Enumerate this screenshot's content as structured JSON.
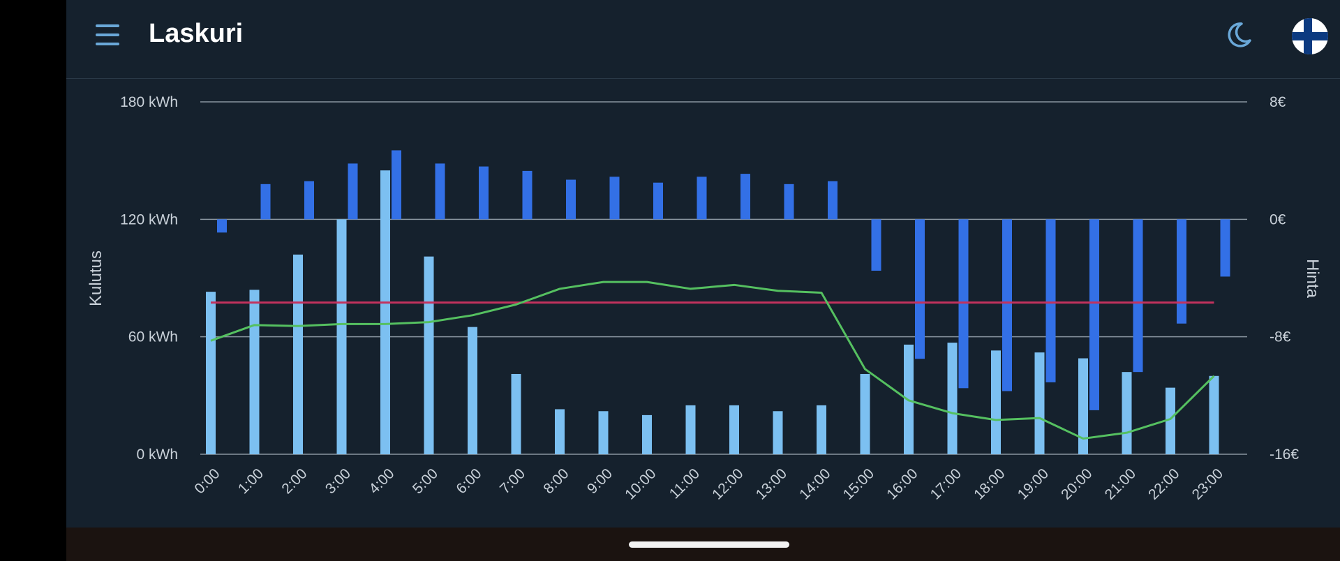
{
  "app": {
    "title": "Laskuri"
  },
  "icons": {
    "menu": "menu-icon",
    "theme": "moon-icon",
    "language": "finland-flag-icon"
  },
  "colors": {
    "background": "#15212d",
    "consumption_bar": "#7cc0f1",
    "price_bar": "#3370e6",
    "green_line": "#55c060",
    "red_line": "#c3325e",
    "grid": "#8a96a0"
  },
  "chart_data": {
    "type": "bar",
    "categories": [
      "0:00",
      "1:00",
      "2:00",
      "3:00",
      "4:00",
      "5:00",
      "6:00",
      "7:00",
      "8:00",
      "9:00",
      "10:00",
      "11:00",
      "12:00",
      "13:00",
      "14:00",
      "15:00",
      "16:00",
      "17:00",
      "18:00",
      "19:00",
      "20:00",
      "21:00",
      "22:00",
      "23:00"
    ],
    "left_axis": {
      "label": "Kulutus",
      "range": [
        0,
        180
      ],
      "ticks": [
        0,
        60,
        120,
        180
      ],
      "tick_labels": [
        "0 kWh",
        "60 kWh",
        "120 kWh",
        "180 kWh"
      ]
    },
    "right_axis": {
      "label": "Hinta",
      "range": [
        -16,
        8
      ],
      "ticks": [
        -16,
        -8,
        0,
        8
      ],
      "tick_labels": [
        "-16€",
        "-8€",
        "0€",
        "8€"
      ]
    },
    "series": [
      {
        "type": "bar",
        "axis": "left",
        "values": [
          83,
          84,
          102,
          120,
          145,
          101,
          65,
          41,
          23,
          22,
          20,
          25,
          25,
          22,
          25,
          41,
          56,
          57,
          53,
          52,
          49,
          42,
          34,
          40
        ]
      },
      {
        "type": "bar",
        "axis": "right",
        "values": [
          -0.9,
          2.4,
          2.6,
          3.8,
          4.7,
          3.8,
          3.6,
          3.3,
          2.7,
          2.9,
          2.5,
          2.9,
          3.1,
          2.4,
          2.6,
          -3.5,
          -9.5,
          -11.5,
          -11.7,
          -11.1,
          -13.0,
          -10.4,
          -7.1,
          -3.9
        ]
      },
      {
        "type": "line",
        "axis": "left",
        "values": [
          58,
          66,
          65.5,
          66.5,
          66.5,
          67.5,
          71,
          76.5,
          84.5,
          88,
          88,
          84.5,
          86.5,
          83.5,
          82.5,
          43.5,
          27.5,
          21,
          17.5,
          18.5,
          8,
          11,
          18,
          40
        ]
      },
      {
        "type": "line",
        "axis": "left",
        "values": [
          77.5,
          77.5,
          77.5,
          77.5,
          77.5,
          77.5,
          77.5,
          77.5,
          77.5,
          77.5,
          77.5,
          77.5,
          77.5,
          77.5,
          77.5,
          77.5,
          77.5,
          77.5,
          77.5,
          77.5,
          77.5,
          77.5,
          77.5,
          77.5
        ]
      }
    ],
    "grid": true
  }
}
